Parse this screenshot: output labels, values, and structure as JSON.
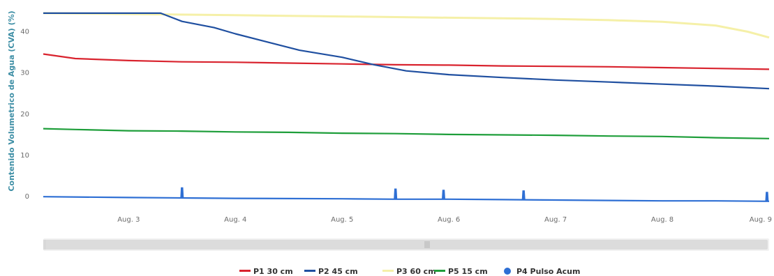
{
  "chart_data": {
    "type": "line",
    "title": "",
    "ylabel": "Contenido Volumetrico de Agua (CVA) (%)",
    "xlabel": "",
    "x_categories": [
      "Aug. 3",
      "Aug. 4",
      "Aug. 5",
      "Aug. 6",
      "Aug. 7",
      "Aug. 8",
      "Aug. 9"
    ],
    "x_tick_days": [
      3,
      4,
      5,
      6,
      7,
      8,
      9
    ],
    "xlim_days": [
      2.2,
      9.0
    ],
    "ylim": [
      -3,
      46
    ],
    "y_ticks": [
      0,
      10,
      20,
      30,
      40
    ],
    "y_tick_labels": [
      "0",
      "10",
      "20",
      "30",
      "40"
    ],
    "grid": false,
    "legend_position": "bottom",
    "series": [
      {
        "name": "P1 30 cm",
        "color": "#d9232e",
        "x": [
          2.2,
          2.5,
          3.0,
          3.5,
          4.0,
          4.5,
          5.0,
          5.5,
          6.0,
          6.5,
          7.0,
          7.5,
          8.0,
          8.5,
          9.0
        ],
        "y": [
          34.6,
          33.5,
          33.0,
          32.7,
          32.6,
          32.4,
          32.2,
          32.0,
          31.9,
          31.7,
          31.6,
          31.5,
          31.3,
          31.1,
          30.9
        ]
      },
      {
        "name": "P2 45 cm",
        "color": "#1f4fa0",
        "x": [
          2.2,
          3.0,
          3.3,
          3.5,
          3.8,
          4.0,
          4.3,
          4.6,
          5.0,
          5.3,
          5.6,
          6.0,
          6.5,
          7.0,
          7.5,
          8.0,
          8.5,
          9.0
        ],
        "y": [
          44.5,
          44.5,
          44.5,
          42.5,
          41.0,
          39.5,
          37.5,
          35.5,
          33.8,
          32.0,
          30.5,
          29.6,
          28.9,
          28.3,
          27.8,
          27.3,
          26.8,
          26.2
        ]
      },
      {
        "name": "P3 60 cm",
        "color": "#f5f0a8",
        "x": [
          2.2,
          3.0,
          4.0,
          5.0,
          6.0,
          7.0,
          7.5,
          8.0,
          8.5,
          8.8,
          9.0
        ],
        "y": [
          44.5,
          44.3,
          44.0,
          43.7,
          43.4,
          43.1,
          42.8,
          42.4,
          41.5,
          40.0,
          38.6
        ]
      },
      {
        "name": "P5 15 cm",
        "color": "#1e9e3a",
        "x": [
          2.2,
          2.5,
          3.0,
          3.5,
          4.0,
          4.5,
          5.0,
          5.5,
          6.0,
          6.5,
          7.0,
          7.5,
          8.0,
          8.5,
          9.0
        ],
        "y": [
          16.5,
          16.3,
          16.0,
          15.9,
          15.7,
          15.6,
          15.4,
          15.3,
          15.1,
          15.0,
          14.9,
          14.7,
          14.6,
          14.3,
          14.1
        ]
      },
      {
        "name": "P4 Pulso Acum",
        "color": "#2e6fd4",
        "marker": "circle",
        "x": [
          2.2,
          3.0,
          3.5,
          4.0,
          5.0,
          5.5,
          6.0,
          6.5,
          7.0,
          7.5,
          8.0,
          8.5,
          9.0
        ],
        "y": [
          0.0,
          -0.2,
          -0.3,
          -0.4,
          -0.5,
          -0.6,
          -0.6,
          -0.7,
          -0.8,
          -0.9,
          -1.0,
          -1.0,
          -1.1
        ],
        "spikes": [
          {
            "x": 3.5,
            "height": 2.5
          },
          {
            "x": 5.5,
            "height": 2.5
          },
          {
            "x": 5.95,
            "height": 2.2
          },
          {
            "x": 6.7,
            "height": 2.2
          },
          {
            "x": 8.98,
            "height": 2.2
          }
        ]
      }
    ]
  },
  "navigator": {
    "range_start": 0.0,
    "range_end": 1.0
  }
}
